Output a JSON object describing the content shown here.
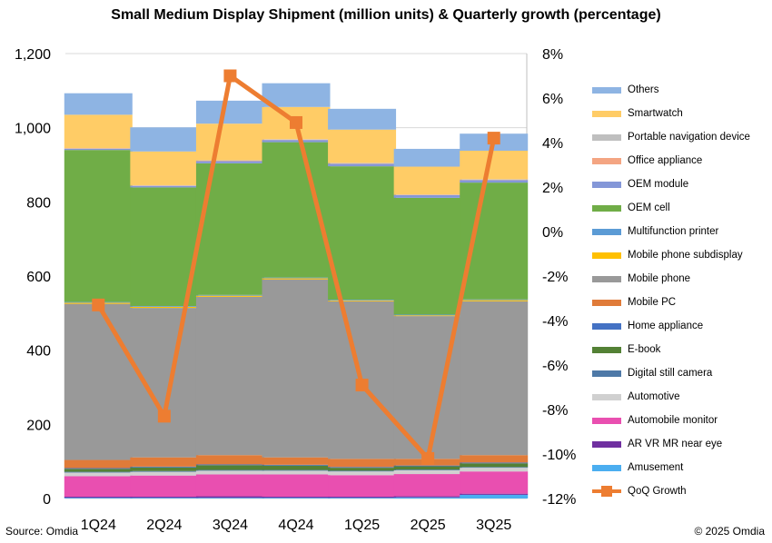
{
  "chart_data": {
    "type": "bar",
    "title": "Small Medium Display Shipment (million units) & Quarterly growth (percentage)",
    "categories": [
      "1Q24",
      "2Q24",
      "3Q24",
      "4Q24",
      "1Q25",
      "2Q25",
      "3Q25"
    ],
    "left_axis": {
      "ylim": [
        0,
        1200
      ],
      "ticks": [
        "0",
        "200",
        "400",
        "600",
        "800",
        "1,000",
        "1,200"
      ]
    },
    "right_axis": {
      "ylim": [
        -12,
        8
      ],
      "ticks": [
        "-12%",
        "-10%",
        "-8%",
        "-6%",
        "-4%",
        "-2%",
        "0%",
        "2%",
        "4%",
        "6%",
        "8%"
      ]
    },
    "series": [
      {
        "name": "Amusement",
        "color": "#4baef0",
        "values": [
          2,
          2,
          2,
          2,
          2,
          3,
          10
        ]
      },
      {
        "name": "AR VR MR near eye",
        "color": "#7030a0",
        "values": [
          3,
          3,
          4,
          3,
          3,
          3,
          3
        ]
      },
      {
        "name": "Automobile monitor",
        "color": "#e94fb0",
        "values": [
          55,
          57,
          59,
          60,
          58,
          60,
          60
        ]
      },
      {
        "name": "Automotive",
        "color": "#d0d0d0",
        "values": [
          10,
          10,
          10,
          10,
          10,
          10,
          10
        ]
      },
      {
        "name": "Digital still camera",
        "color": "#4e79a7",
        "values": [
          2,
          2,
          2,
          2,
          2,
          2,
          2
        ]
      },
      {
        "name": "E-book",
        "color": "#538135",
        "values": [
          8,
          10,
          13,
          12,
          8,
          9,
          10
        ]
      },
      {
        "name": "Home appliance",
        "color": "#4472c4",
        "values": [
          2,
          2,
          2,
          2,
          2,
          2,
          2
        ]
      },
      {
        "name": "Mobile PC",
        "color": "#e07b39",
        "values": [
          22,
          25,
          25,
          20,
          22,
          18,
          20
        ]
      },
      {
        "name": "Mobile phone",
        "color": "#999999",
        "values": [
          421,
          403,
          427,
          480,
          425,
          385,
          415
        ]
      },
      {
        "name": "Mobile phone subdisplay",
        "color": "#ffc000",
        "values": [
          3,
          3,
          3,
          3,
          2,
          2,
          3
        ]
      },
      {
        "name": "Multifunction printer",
        "color": "#5b9bd5",
        "values": [
          2,
          2,
          2,
          2,
          2,
          2,
          2
        ]
      },
      {
        "name": "OEM cell",
        "color": "#70ad47",
        "values": [
          410,
          320,
          355,
          365,
          360,
          315,
          315
        ]
      },
      {
        "name": "OEM module",
        "color": "#8497d8",
        "values": [
          3,
          4,
          6,
          6,
          7,
          7,
          7
        ]
      },
      {
        "name": "Office appliance",
        "color": "#f4a582",
        "values": [
          1,
          1,
          1,
          1,
          1,
          1,
          1
        ]
      },
      {
        "name": "Portable navigation device",
        "color": "#bfbfbf",
        "values": [
          1,
          1,
          1,
          1,
          1,
          1,
          1
        ]
      },
      {
        "name": "Smartwatch",
        "color": "#ffcc66",
        "values": [
          90,
          91,
          99,
          87,
          90,
          75,
          77
        ]
      },
      {
        "name": "Others",
        "color": "#8eb4e3",
        "values": [
          58,
          65,
          62,
          64,
          56,
          48,
          46
        ]
      }
    ],
    "line_series": {
      "name": "QoQ Growth",
      "color": "#ed7d31",
      "values": [
        -3.3,
        -8.3,
        7.0,
        4.9,
        -6.9,
        -10.2,
        4.2
      ]
    },
    "source": "Source: Omdia",
    "copyright": "© 2025 Omdia"
  }
}
